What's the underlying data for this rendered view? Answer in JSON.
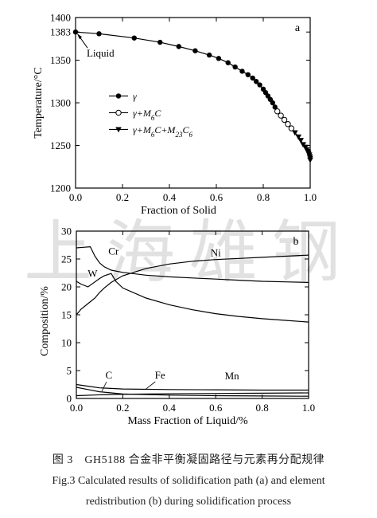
{
  "watermark": "上海雄钢",
  "caption": {
    "cn": "图 3　GH5188 合金非平衡凝固路径与元素再分配规律",
    "en_line1": "Fig.3   Calculated results of solidification path (a) and element",
    "en_line2": "redistribution (b) during solidification process"
  },
  "chart_data": [
    {
      "type": "scatter",
      "panel_label": "a",
      "xlabel": "Fraction of Solid",
      "ylabel": "Temperature/°C",
      "xlim": [
        0.0,
        1.0
      ],
      "ylim": [
        1200,
        1400
      ],
      "xticks": [
        "0.0",
        "0.2",
        "0.4",
        "0.6",
        "0.8",
        "1.0"
      ],
      "yticks": [
        "1200",
        "1250",
        "1300",
        "1350",
        "1383",
        "1400"
      ],
      "annotation": "Liquid",
      "liquidus": 1383,
      "legend": [
        {
          "label": "γ",
          "marker": "filled-circle"
        },
        {
          "label": "γ+M6C",
          "marker": "open-circle"
        },
        {
          "label": "γ+M6C+M23C6",
          "marker": "filled-triangle"
        }
      ],
      "series": [
        {
          "name": "γ",
          "marker": "filled-circle",
          "x": [
            0.0,
            0.1,
            0.25,
            0.36,
            0.44,
            0.51,
            0.57,
            0.61,
            0.65,
            0.68,
            0.71,
            0.735,
            0.755,
            0.77,
            0.785,
            0.8,
            0.81,
            0.82,
            0.83,
            0.84,
            0.85
          ],
          "y": [
            1383,
            1381,
            1376,
            1371,
            1366,
            1361,
            1356,
            1352,
            1347,
            1342,
            1337,
            1333,
            1329,
            1325,
            1321,
            1316,
            1312,
            1308,
            1304,
            1300,
            1295
          ]
        },
        {
          "name": "γ+M6C",
          "marker": "open-circle",
          "x": [
            0.86,
            0.875,
            0.89,
            0.905,
            0.92
          ],
          "y": [
            1290,
            1285,
            1280,
            1275,
            1270
          ]
        },
        {
          "name": "γ+M6C+M23C6",
          "marker": "filled-triangle",
          "x": [
            0.935,
            0.95,
            0.96,
            0.97,
            0.98,
            0.985,
            0.99,
            0.993,
            0.996,
            0.998,
            1.0,
            1.0
          ],
          "y": [
            1265,
            1260,
            1256,
            1251,
            1248,
            1245,
            1243,
            1241,
            1239,
            1237,
            1235,
            1233
          ]
        }
      ]
    },
    {
      "type": "line",
      "panel_label": "b",
      "xlabel": "Mass Fraction of Liquid/%",
      "ylabel": "Composition/%",
      "xlim": [
        0.0,
        1.0
      ],
      "ylim": [
        0,
        30
      ],
      "xticks": [
        "0.0",
        "0.2",
        "0.4",
        "0.6",
        "0.8",
        "1.0"
      ],
      "yticks": [
        "0",
        "5",
        "10",
        "15",
        "20",
        "25",
        "30"
      ],
      "series": [
        {
          "name": "Ni",
          "x": [
            0.0,
            0.02,
            0.05,
            0.08,
            0.1,
            0.12,
            0.15,
            0.2,
            0.3,
            0.4,
            0.5,
            0.6,
            0.7,
            0.8,
            0.9,
            1.0
          ],
          "y": [
            15.0,
            16.0,
            17.0,
            18.0,
            19.0,
            19.8,
            20.8,
            22.0,
            23.3,
            24.1,
            24.6,
            24.9,
            25.1,
            25.3,
            25.5,
            25.7
          ]
        },
        {
          "name": "Cr",
          "x": [
            0.0,
            0.03,
            0.06,
            0.08,
            0.1,
            0.12,
            0.15,
            0.2,
            0.3,
            0.4,
            0.5,
            0.6,
            0.7,
            0.8,
            0.9,
            1.0
          ],
          "y": [
            27.0,
            27.1,
            27.2,
            25.5,
            24.3,
            23.6,
            23.0,
            22.6,
            22.1,
            21.8,
            21.6,
            21.4,
            21.2,
            21.0,
            20.9,
            20.8
          ]
        },
        {
          "name": "W",
          "x": [
            0.0,
            0.02,
            0.05,
            0.07,
            0.1,
            0.12,
            0.15,
            0.17,
            0.2,
            0.3,
            0.4,
            0.5,
            0.6,
            0.7,
            0.8,
            0.9,
            1.0
          ],
          "y": [
            21.0,
            20.5,
            20.0,
            20.6,
            21.5,
            22.0,
            22.4,
            21.0,
            19.8,
            18.0,
            16.8,
            15.9,
            15.2,
            14.7,
            14.3,
            14.0,
            13.7
          ]
        },
        {
          "name": "C",
          "x": [
            0.0,
            0.05,
            0.1,
            0.2,
            0.4,
            0.6,
            0.8,
            1.0
          ],
          "y": [
            2.0,
            1.6,
            1.2,
            0.8,
            0.6,
            0.5,
            0.45,
            0.4
          ]
        },
        {
          "name": "Fe",
          "x": [
            0.0,
            0.05,
            0.1,
            0.2,
            0.4,
            0.6,
            0.8,
            1.0
          ],
          "y": [
            2.5,
            2.2,
            1.9,
            1.7,
            1.6,
            1.55,
            1.5,
            1.5
          ]
        },
        {
          "name": "Mn",
          "x": [
            0.0,
            0.1,
            0.2,
            0.4,
            0.6,
            0.8,
            1.0
          ],
          "y": [
            0.5,
            0.65,
            0.75,
            0.85,
            0.9,
            0.95,
            1.0
          ]
        }
      ],
      "labels": [
        {
          "text": "Cr",
          "x": 0.16,
          "y": 25.8
        },
        {
          "text": "Ni",
          "x": 0.6,
          "y": 25.5
        },
        {
          "text": "W",
          "x": 0.07,
          "y": 21.8
        },
        {
          "text": "C",
          "x": 0.14,
          "y": 3.6
        },
        {
          "text": "Fe",
          "x": 0.36,
          "y": 3.6
        },
        {
          "text": "Mn",
          "x": 0.67,
          "y": 3.4
        }
      ]
    }
  ]
}
